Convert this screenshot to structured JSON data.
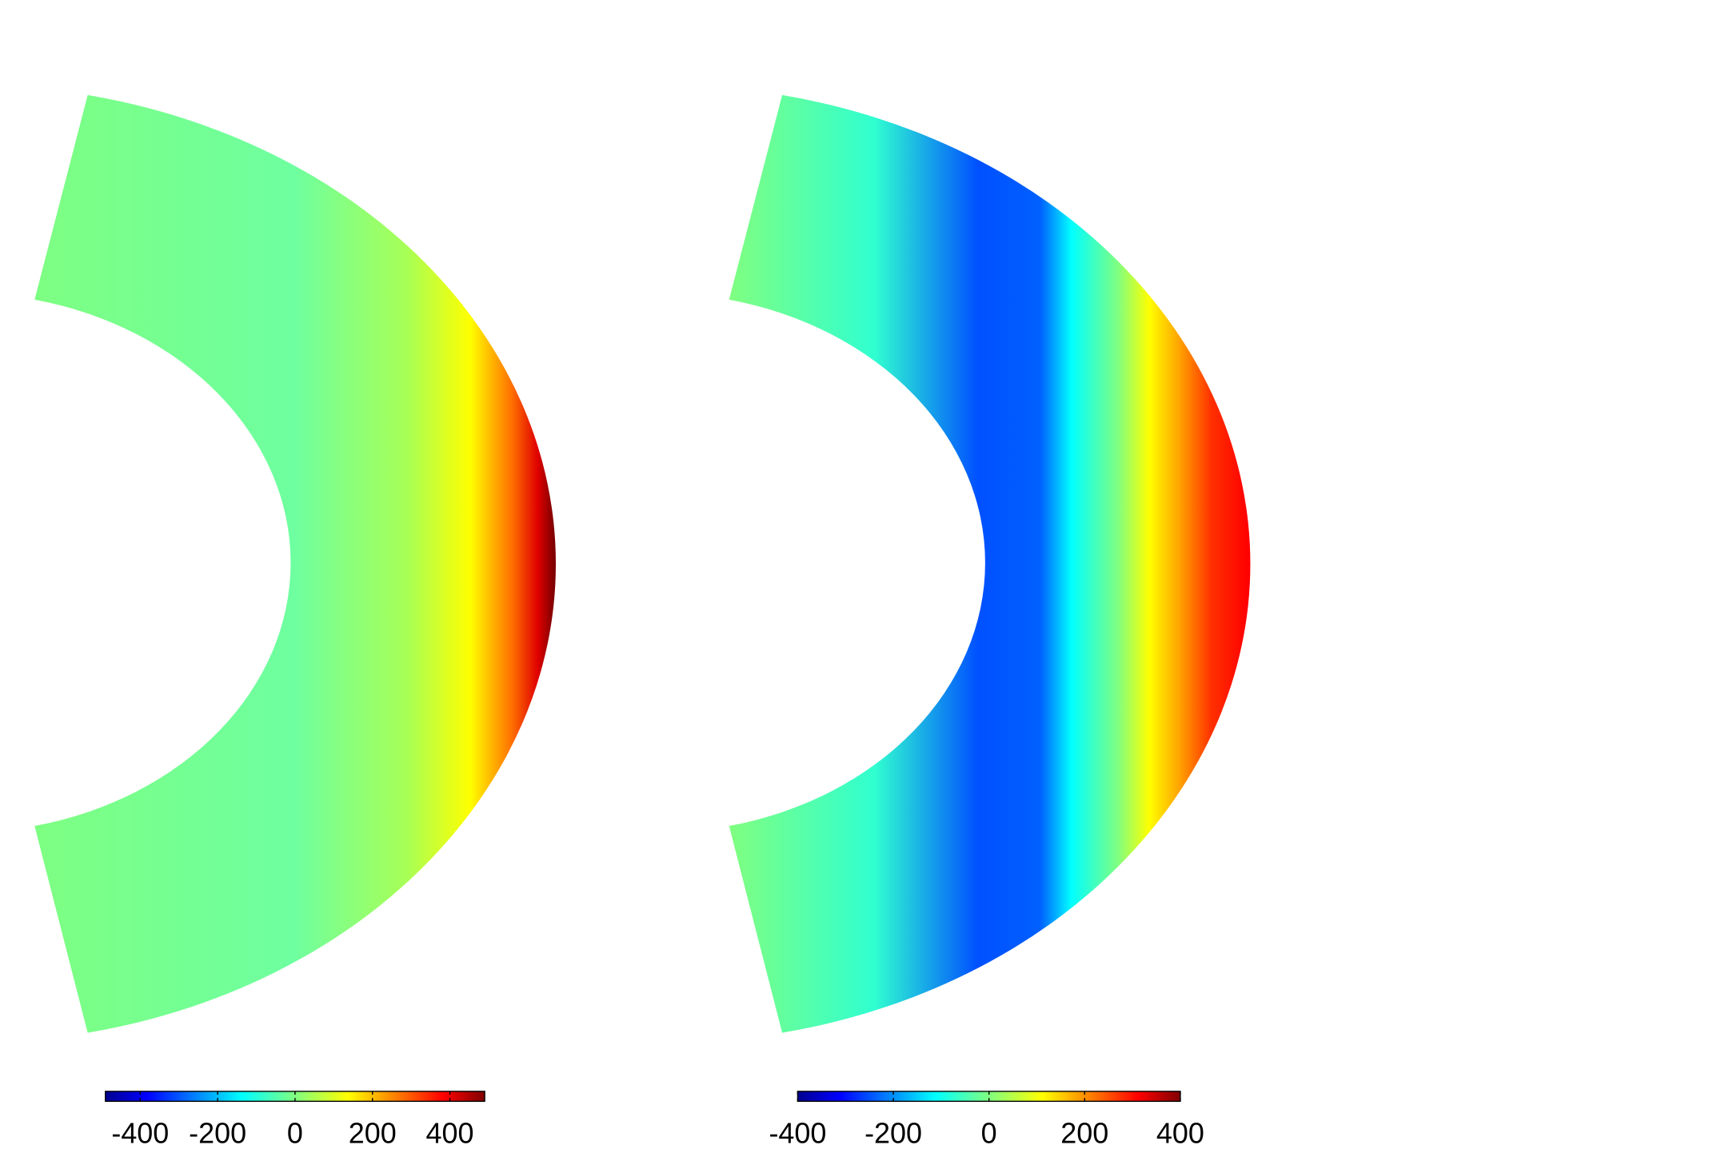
{
  "chart_data": [
    {
      "type": "heatmap",
      "colormap": "jet",
      "clim": [
        -490,
        490
      ],
      "cticks": [
        -400,
        -200,
        0,
        200,
        400
      ]
    },
    {
      "type": "heatmap",
      "colormap": "jet",
      "clim": [
        -400,
        400
      ],
      "cticks": [
        -400,
        -200,
        0,
        200,
        400
      ]
    }
  ]
}
